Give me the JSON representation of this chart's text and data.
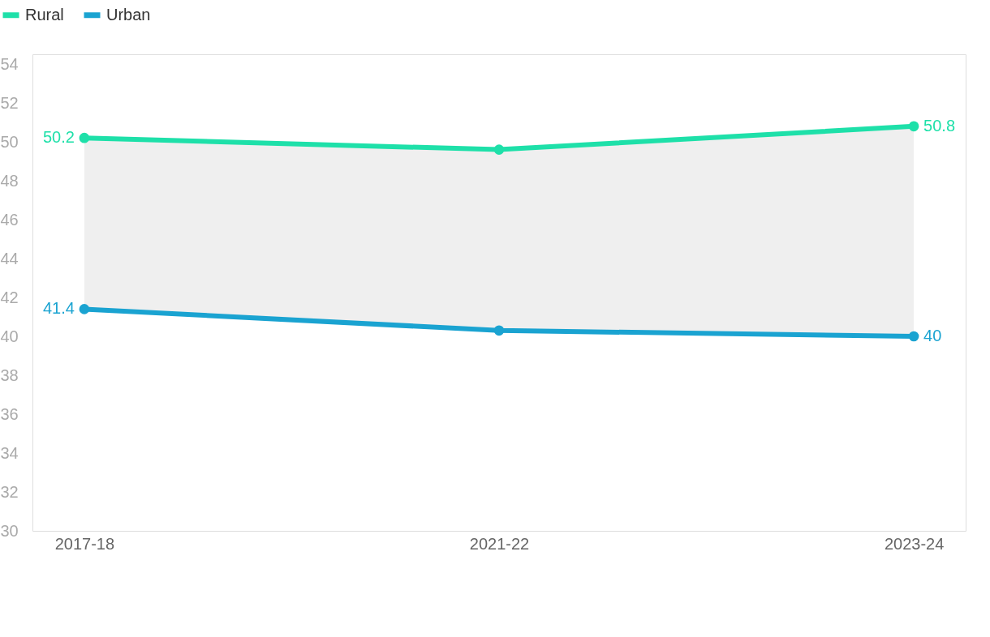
{
  "chart_data": {
    "type": "line",
    "categories": [
      "2017-18",
      "2021-22",
      "2023-24"
    ],
    "series": [
      {
        "name": "Rural",
        "color": "#1ee0a9",
        "values": [
          50.2,
          49.6,
          50.8
        ],
        "value_labels": [
          "50.2",
          null,
          "50.8"
        ],
        "lower": [
          41.4,
          40.3,
          40
        ],
        "upper": [
          50.2,
          49.6,
          50.8
        ]
      },
      {
        "name": "Urban",
        "color": "#1aa3d1",
        "values": [
          41.4,
          40.3,
          40
        ],
        "value_labels": [
          "41.4",
          null,
          "40"
        ]
      }
    ],
    "ylim": [
      30,
      54.5
    ],
    "yticks": [
      30,
      32,
      34,
      36,
      38,
      40,
      42,
      44,
      46,
      48,
      50,
      52,
      54
    ],
    "grid": false,
    "legend": "top left",
    "marker": "circle",
    "line_style": "solid"
  }
}
